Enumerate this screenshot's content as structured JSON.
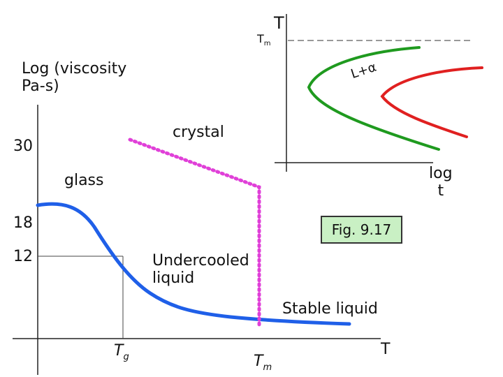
{
  "main_axes": {
    "y_label_line1": "Log (viscosity",
    "y_label_line2": "Pa-s)",
    "x_label": "T",
    "y_ticks": [
      "30",
      "18",
      "12"
    ],
    "tg_symbol": "T",
    "tg_subscript": "g",
    "tm_symbol": "T",
    "tm_subscript": "m"
  },
  "labels": {
    "crystal": "crystal",
    "glass": "glass",
    "undercooled_line1": "Undercooled",
    "undercooled_line2": "liquid",
    "stable_liquid": "Stable liquid",
    "figure_caption": "Fig. 9.17"
  },
  "inset": {
    "y_label": "T",
    "tm_symbol": "T",
    "tm_subscript": "m",
    "x_label_line1": "log",
    "x_label_line2": "t",
    "curve_label": "L+α"
  },
  "colors": {
    "viscosity_curve": "#1f5fe8",
    "crystal_dots": "#e040d8",
    "inset_green": "#1f9a1f",
    "inset_red": "#e02020",
    "caption_box": "#c9f0c4"
  }
}
